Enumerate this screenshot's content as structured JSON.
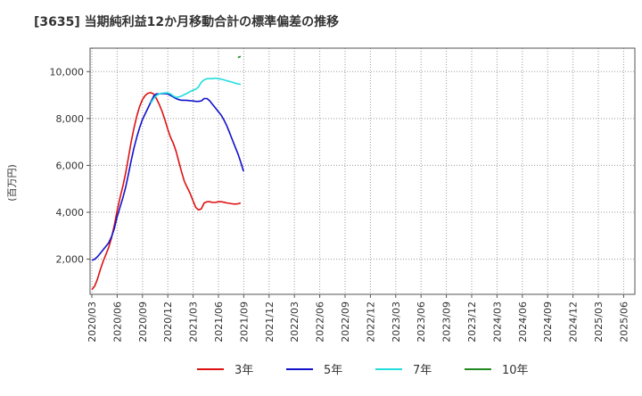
{
  "chart_data": {
    "type": "line",
    "title": "[3635]  当期純利益12か月移動合計の標準偏差の推移",
    "ylabel": "(百万円)",
    "xlabel": "",
    "ylim": [
      500,
      11000
    ],
    "y_ticks": [
      2000,
      4000,
      6000,
      8000,
      10000
    ],
    "y_tick_labels": [
      "2,000",
      "4,000",
      "6,000",
      "8,000",
      "10,000"
    ],
    "x_tick_labels": [
      "2020/03",
      "2020/06",
      "2020/09",
      "2020/12",
      "2021/03",
      "2021/06",
      "2021/09",
      "2021/12",
      "2022/03",
      "2022/06",
      "2022/09",
      "2022/12",
      "2023/03",
      "2023/06",
      "2023/09",
      "2023/12",
      "2024/03",
      "2024/06",
      "2024/09",
      "2024/12",
      "2025/03",
      "2025/06"
    ],
    "grid": true,
    "legend_position": "bottom",
    "series": [
      {
        "name": "3年",
        "color": "#dd1111",
        "start_index": 0,
        "values": [
          700,
          850,
          1150,
          1550,
          1900,
          2200,
          2500,
          2900,
          3450,
          4050,
          4600,
          5100,
          5650,
          6300,
          7000,
          7600,
          8100,
          8500,
          8800,
          8980,
          9080,
          9100,
          9050,
          8850,
          8600,
          8300,
          7950,
          7550,
          7200,
          6950,
          6600,
          6150,
          5700,
          5300,
          5050,
          4800,
          4500,
          4200,
          4100,
          4150,
          4400,
          4450,
          4450,
          4420,
          4420,
          4450,
          4450,
          4430,
          4400,
          4380,
          4360,
          4350,
          4360,
          4400
        ]
      },
      {
        "name": "5年",
        "color": "#1111cc",
        "start_index": 0,
        "values": [
          1950,
          2000,
          2100,
          2250,
          2400,
          2550,
          2700,
          2950,
          3300,
          3800,
          4200,
          4600,
          5050,
          5600,
          6200,
          6750,
          7200,
          7600,
          7950,
          8200,
          8450,
          8700,
          8950,
          9050,
          9050,
          9060,
          9060,
          9050,
          8980,
          8920,
          8850,
          8800,
          8780,
          8780,
          8770,
          8760,
          8750,
          8730,
          8730,
          8750,
          8850,
          8850,
          8750,
          8600,
          8450,
          8300,
          8150,
          7950,
          7700,
          7400,
          7100,
          6800,
          6500,
          6150,
          5750
        ]
      },
      {
        "name": "7年",
        "color": "#22dddd",
        "start_index": 21,
        "values": [
          8650,
          8850,
          8980,
          9050,
          9080,
          9090,
          9090,
          9050,
          8960,
          8900,
          8920,
          8960,
          9020,
          9080,
          9150,
          9200,
          9250,
          9350,
          9550,
          9650,
          9700,
          9700,
          9700,
          9720,
          9700,
          9680,
          9650,
          9610,
          9580,
          9550,
          9510,
          9480,
          9450
        ]
      },
      {
        "name": "10年",
        "color": "#228822",
        "start_index": 52,
        "values": [
          10600,
          10650
        ]
      }
    ]
  }
}
